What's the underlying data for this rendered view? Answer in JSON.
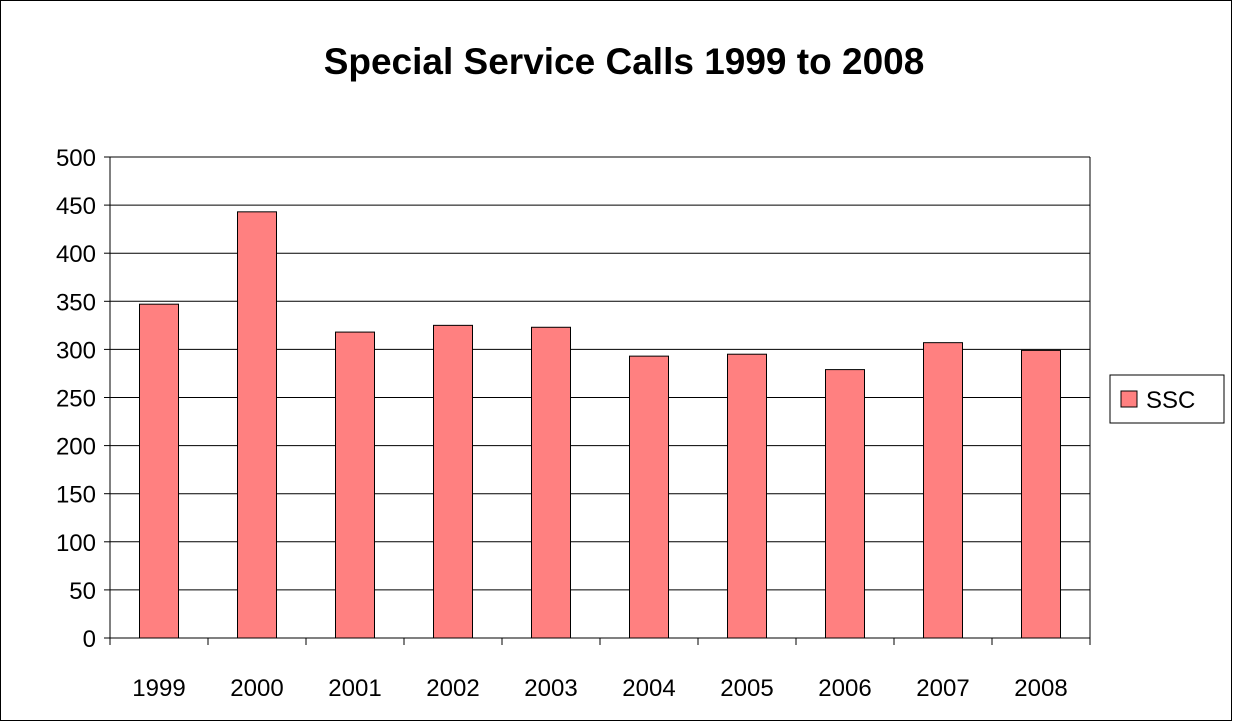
{
  "chart_data": {
    "type": "bar",
    "title": "Special Service Calls 1999 to 2008",
    "xlabel": "",
    "ylabel": "",
    "categories": [
      "1999",
      "2000",
      "2001",
      "2002",
      "2003",
      "2004",
      "2005",
      "2006",
      "2007",
      "2008"
    ],
    "series": [
      {
        "name": "SSC",
        "values": [
          347,
          443,
          318,
          325,
          323,
          293,
          295,
          279,
          307,
          299
        ],
        "color": "#FF8080"
      }
    ],
    "ylim": [
      0,
      500
    ],
    "yticks": [
      "0",
      "50",
      "100",
      "150",
      "200",
      "250",
      "300",
      "350",
      "400",
      "450",
      "500"
    ],
    "grid": true,
    "legend": "right"
  }
}
